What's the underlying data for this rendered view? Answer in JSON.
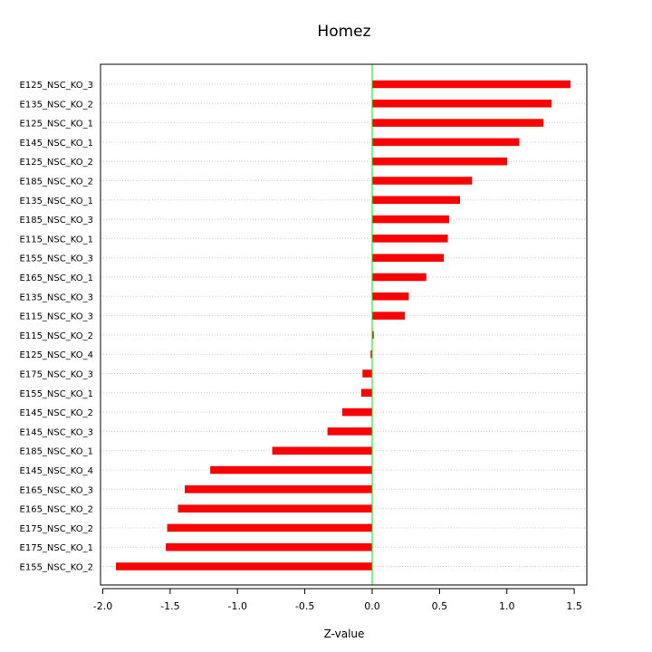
{
  "chart_data": {
    "type": "bar",
    "orientation": "horizontal",
    "title": "Homez",
    "xlabel": "Z-value",
    "ylabel": "",
    "xlim": [
      -2.05,
      1.62
    ],
    "x_ticks": [
      -2.0,
      -1.5,
      -1.0,
      -0.5,
      0.0,
      0.5,
      1.0,
      1.5
    ],
    "x_tick_labels": [
      "-2.0",
      "-1.5",
      "-1.0",
      "-0.5",
      "0.0",
      "0.5",
      "1.0",
      "1.5"
    ],
    "grid": "horizontal dotted",
    "reference_line": 0.0,
    "colors": {
      "bar": "#ff0000",
      "reference_line": "#00ee00",
      "grid": "#cccccc",
      "axis": "#000000"
    },
    "categories": [
      "E125_NSC_KO_3",
      "E135_NSC_KO_2",
      "E125_NSC_KO_1",
      "E145_NSC_KO_1",
      "E125_NSC_KO_2",
      "E185_NSC_KO_2",
      "E135_NSC_KO_1",
      "E185_NSC_KO_3",
      "E115_NSC_KO_1",
      "E155_NSC_KO_3",
      "E165_NSC_KO_1",
      "E135_NSC_KO_3",
      "E115_NSC_KO_3",
      "E115_NSC_KO_2",
      "E125_NSC_KO_4",
      "E175_NSC_KO_3",
      "E155_NSC_KO_1",
      "E145_NSC_KO_2",
      "E145_NSC_KO_3",
      "E185_NSC_KO_1",
      "E145_NSC_KO_4",
      "E165_NSC_KO_3",
      "E165_NSC_KO_2",
      "E175_NSC_KO_2",
      "E175_NSC_KO_1",
      "E155_NSC_KO_2"
    ],
    "values": [
      1.47,
      1.33,
      1.27,
      1.09,
      1.0,
      0.74,
      0.65,
      0.57,
      0.56,
      0.53,
      0.4,
      0.27,
      0.24,
      0.01,
      -0.01,
      -0.07,
      -0.08,
      -0.22,
      -0.33,
      -0.74,
      -1.2,
      -1.39,
      -1.44,
      -1.52,
      -1.53,
      -1.9
    ]
  }
}
